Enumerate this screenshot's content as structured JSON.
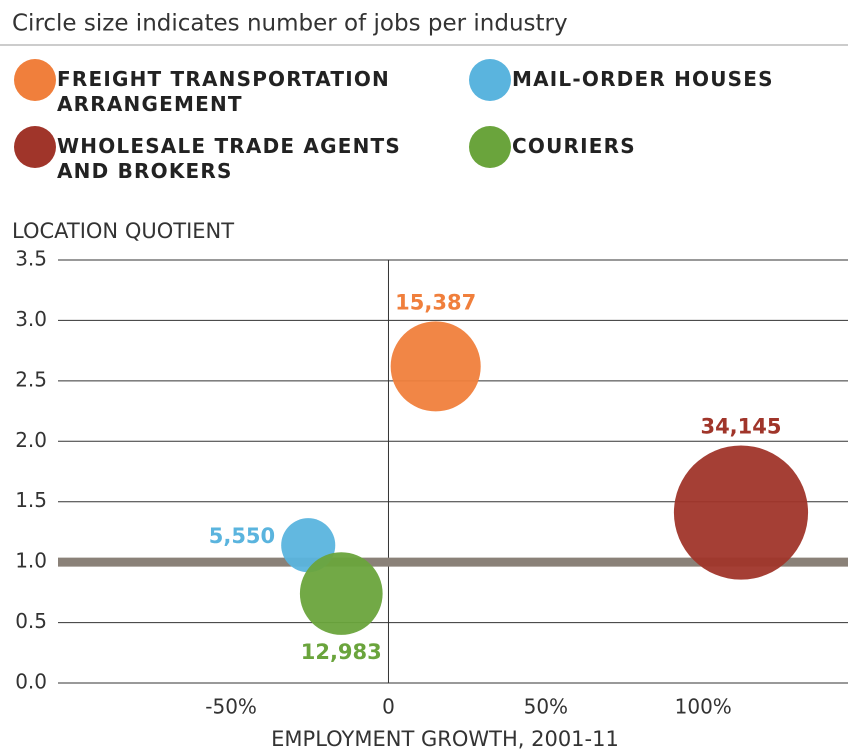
{
  "chart_data": {
    "type": "bubble",
    "subtitle": "Circle size indicates number of jobs per industry",
    "y_label": "LOCATION QUOTIENT",
    "x_label": "EMPLOYMENT GROWTH, 2001-11",
    "xlim": [
      -105,
      146
    ],
    "ylim": [
      0,
      3.5
    ],
    "xticks": [
      {
        "value": -50,
        "label": "-50%"
      },
      0,
      {
        "value": 50,
        "label": "50%"
      },
      {
        "value": 100,
        "label": "100%"
      }
    ],
    "yticks": [
      {
        "value": 0,
        "label": "0.0"
      },
      0.5,
      {
        "value": 1,
        "label": "1.0"
      },
      1.5,
      {
        "value": 2,
        "label": "2.0"
      },
      2.5,
      {
        "value": 3,
        "label": "3.0"
      },
      3.5
    ],
    "reference_line": 1,
    "grid": true,
    "series": [
      {
        "name": "FREIGHT TRANSPORTATION ARRANGEMENT",
        "color": "#f07f3c",
        "x": [
          15
        ],
        "values": [
          2.62
        ],
        "sizes": [
          15387
        ],
        "value_labels": [
          "15,387"
        ]
      },
      {
        "name": "WHOLESALE TRADE AGENTS AND BROKERS",
        "color": "#a0352a",
        "x": [
          112
        ],
        "values": [
          1.41
        ],
        "sizes": [
          34145
        ],
        "value_labels": [
          "34,145"
        ]
      },
      {
        "name": "MAIL-ORDER HOUSES",
        "color": "#5ab4de",
        "x": [
          -25.5
        ],
        "values": [
          1.14
        ],
        "sizes": [
          5550
        ],
        "value_labels": [
          "5,550"
        ]
      },
      {
        "name": "COURIERS",
        "color": "#6aa43c",
        "x": [
          -15
        ],
        "values": [
          0.74
        ],
        "sizes": [
          12983
        ],
        "value_labels": [
          "12,983"
        ]
      }
    ]
  }
}
